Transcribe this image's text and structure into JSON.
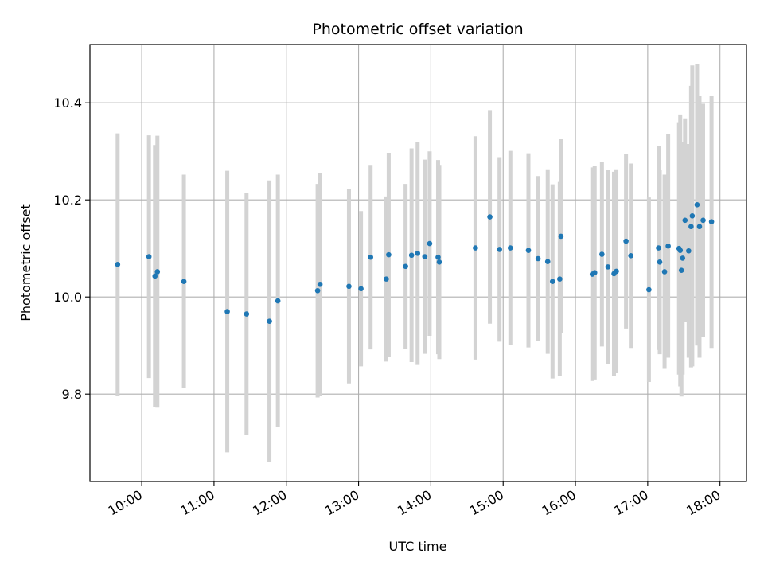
{
  "chart_data": {
    "type": "scatter",
    "title": "Photometric offset variation",
    "xlabel": "UTC time",
    "ylabel": "Photometric offset",
    "grid": true,
    "x_ticks": [
      "10:00",
      "11:00",
      "12:00",
      "13:00",
      "14:00",
      "15:00",
      "16:00",
      "17:00",
      "18:00"
    ],
    "y_ticks": [
      "9.8",
      "10.0",
      "10.2",
      "10.4"
    ],
    "xlim": [
      "09:17",
      "18:22"
    ],
    "ylim": [
      9.62,
      10.52
    ],
    "colors": {
      "points": "#1f77b4",
      "errorbars": "#d3d3d3",
      "grid": "#b0b0b0"
    },
    "series": [
      {
        "x": [
          "09:40",
          "10:06",
          "10:11",
          "10:13",
          "10:35",
          "11:11",
          "11:27",
          "11:46",
          "11:53",
          "12:26",
          "12:28",
          "12:52",
          "13:02",
          "13:10",
          "13:23",
          "13:25",
          "13:39",
          "13:44",
          "13:49",
          "13:55",
          "13:59",
          "14:06",
          "14:07",
          "14:37",
          "14:49",
          "14:57",
          "15:06",
          "15:21",
          "15:29",
          "15:37",
          "15:41",
          "15:47",
          "15:48",
          "16:14",
          "16:16",
          "16:22",
          "16:27",
          "16:32",
          "16:34",
          "16:42",
          "16:46",
          "17:01",
          "17:09",
          "17:10",
          "17:14",
          "17:17",
          "17:26",
          "17:27",
          "17:28",
          "17:29",
          "17:31",
          "17:34",
          "17:36",
          "17:37",
          "17:41",
          "17:43",
          "17:46",
          "17:53"
        ],
        "y": [
          10.067,
          10.083,
          10.043,
          10.052,
          10.032,
          9.97,
          9.965,
          9.95,
          9.992,
          10.013,
          10.026,
          10.022,
          10.017,
          10.082,
          10.037,
          10.087,
          10.063,
          10.086,
          10.09,
          10.083,
          10.11,
          10.082,
          10.072,
          10.101,
          10.165,
          10.098,
          10.101,
          10.096,
          10.079,
          10.073,
          10.032,
          10.037,
          10.125,
          10.047,
          10.05,
          10.088,
          10.062,
          10.048,
          10.053,
          10.115,
          10.085,
          10.015,
          10.101,
          10.072,
          10.052,
          10.105,
          10.1,
          10.096,
          10.055,
          10.08,
          10.158,
          10.095,
          10.145,
          10.167,
          10.19,
          10.145,
          10.158,
          10.155
        ],
        "yerr": [
          0.27,
          0.25,
          0.27,
          0.28,
          0.22,
          0.29,
          0.25,
          0.29,
          0.26,
          0.22,
          0.23,
          0.2,
          0.16,
          0.19,
          0.17,
          0.21,
          0.17,
          0.22,
          0.23,
          0.2,
          0.19,
          0.2,
          0.2,
          0.23,
          0.22,
          0.19,
          0.2,
          0.2,
          0.17,
          0.19,
          0.2,
          0.2,
          0.2,
          0.22,
          0.22,
          0.19,
          0.2,
          0.21,
          0.21,
          0.18,
          0.19,
          0.19,
          0.21,
          0.19,
          0.2,
          0.23,
          0.26,
          0.28,
          0.26,
          0.24,
          0.21,
          0.22,
          0.29,
          0.31,
          0.29,
          0.27,
          0.24,
          0.26
        ]
      }
    ]
  }
}
